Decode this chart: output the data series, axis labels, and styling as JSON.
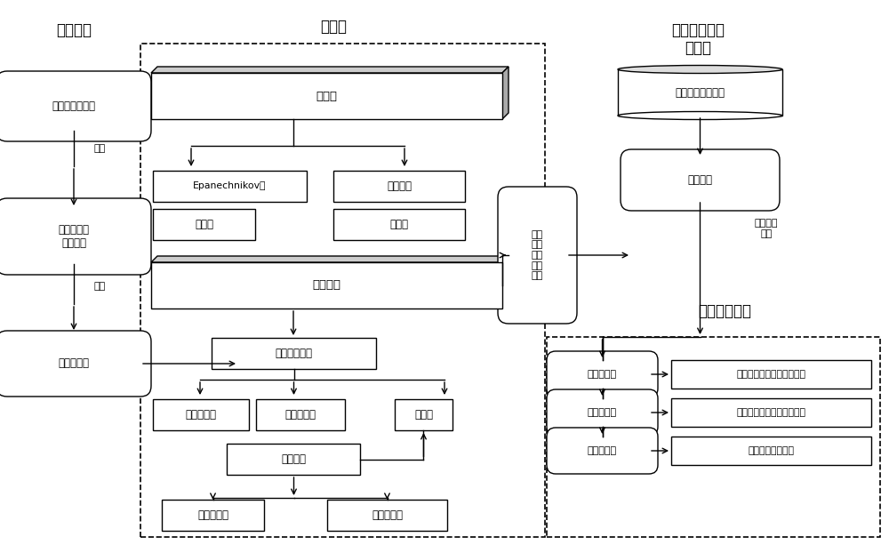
{
  "bg_color": "#ffffff",
  "text_color": "#000000",
  "title_fangfa": "方法引入",
  "title_guanjian": "关键点",
  "title_zhiliang": "质量控制试验\n与分析",
  "title_xuqiu": "质量控制需求",
  "nodes": {
    "fei_canshu": "非参数回归方法",
    "quan_hanshu": "权函数回归\n估计方法",
    "he_huigui": "核回归方法",
    "he_hanshu": "核函数",
    "epanechnikov": "Epanechnikov核",
    "shuangquan": "双权重核",
    "sanjiao": "三角核",
    "gaosi": "高斯核",
    "chuang_kuan": "窗宽选择",
    "shuxue": "数学推导方式",
    "jiaocuo": "交错鉴定法",
    "chengfa": "惩罚函数法",
    "charu": "插入法",
    "youhua": "优化方法",
    "lizi": "粒子群方法",
    "bai_shiying": "白适应方法",
    "xuanqu": "选取\n高斯\n核及\n改进\n方法",
    "dimian": "地面气温观测资料",
    "huigui_yuce": "回归预测",
    "pubian": "普适性验证",
    "youyue": "优越性验证",
    "jiancuo": "检错率验证",
    "dan_zhan": "单站点及多站点基础性试验",
    "gaijin": "改进试验及对比试验与分析",
    "nengli": "质量控制能力分析"
  },
  "labels": {
    "yanshen": "延伸",
    "changyong": "常用",
    "huigui_yingyong": "回归方法\n应用"
  }
}
